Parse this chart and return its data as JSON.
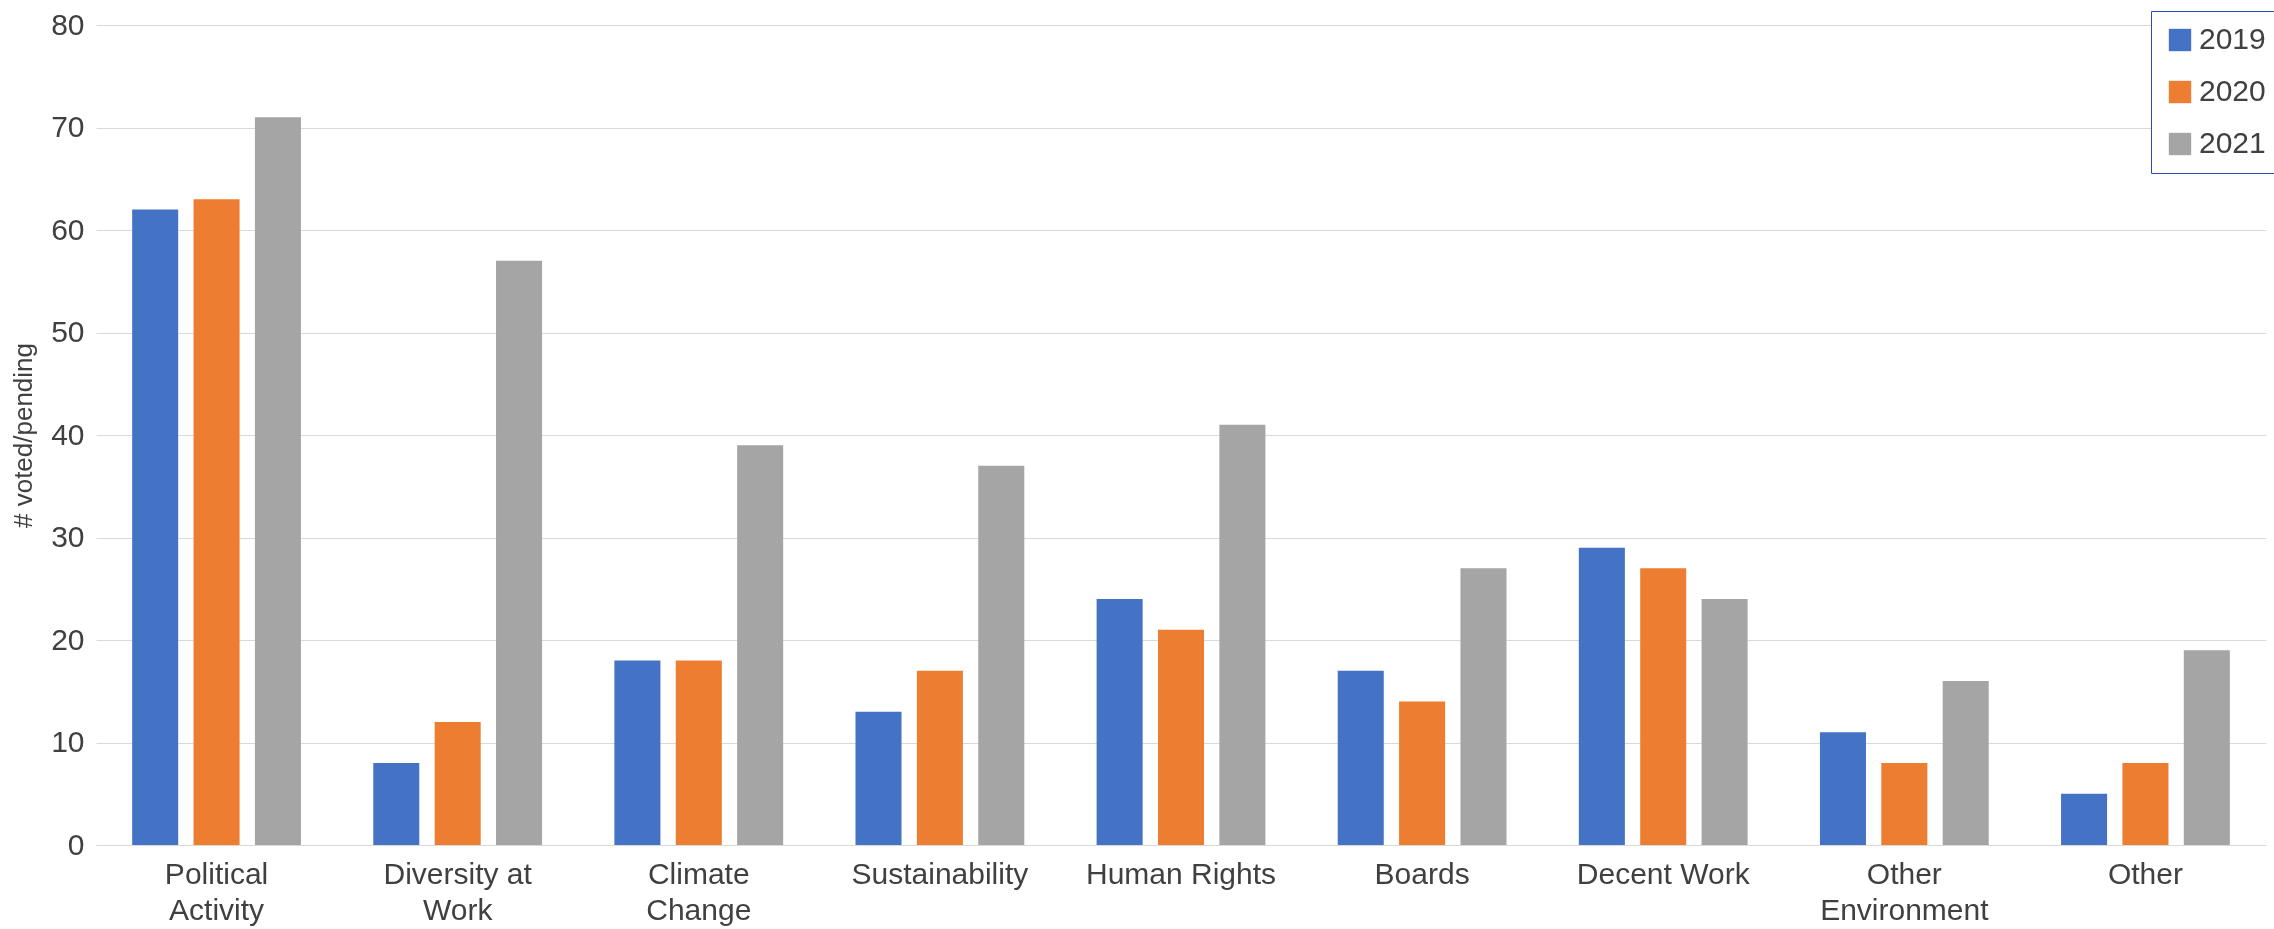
{
  "chart_data": {
    "type": "bar",
    "ylabel": "# voted/pending",
    "categories": [
      "Political Activity",
      "Diversity at Work",
      "Climate Change",
      "Sustainability",
      "Human Rights",
      "Boards",
      "Decent Work",
      "Other Environment",
      "Other"
    ],
    "series": [
      {
        "name": "2019",
        "color": "#4472c4",
        "values": [
          62,
          8,
          18,
          13,
          24,
          17,
          29,
          11,
          5
        ]
      },
      {
        "name": "2020",
        "color": "#ed7d31",
        "values": [
          63,
          12,
          18,
          17,
          21,
          14,
          27,
          8,
          8
        ]
      },
      {
        "name": "2021",
        "color": "#a5a5a5",
        "values": [
          71,
          57,
          39,
          37,
          41,
          27,
          24,
          16,
          19
        ]
      }
    ],
    "ylim": [
      0,
      80
    ],
    "yticks": [
      0,
      10,
      20,
      30,
      40,
      50,
      60,
      70,
      80
    ],
    "grid": "y",
    "legend": "top right"
  }
}
